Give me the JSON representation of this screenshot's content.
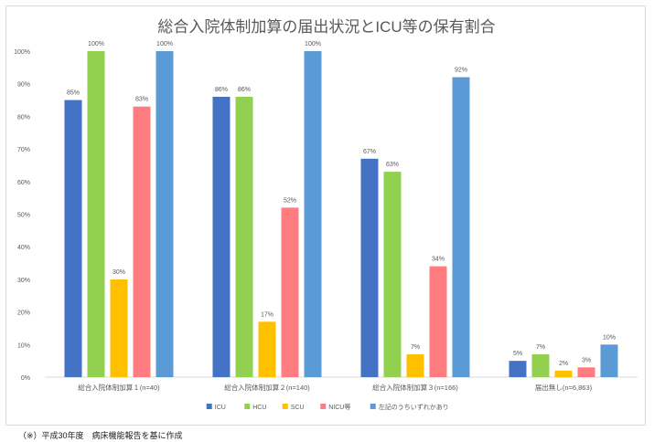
{
  "chart_data": {
    "type": "bar",
    "title": "総合入院体制加算の届出状況とICU等の保有割合",
    "xlabel": "",
    "ylabel": "",
    "ylim": [
      0,
      100
    ],
    "yticks": [
      "0%",
      "10%",
      "20%",
      "30%",
      "40%",
      "50%",
      "60%",
      "70%",
      "80%",
      "90%",
      "100%"
    ],
    "categories": [
      "総合入院体制加算１(n=40)",
      "総合入院体制加算２(n=140)",
      "総合入院体制加算３(n=166)",
      "届出無し(n=6,863)"
    ],
    "series": [
      {
        "name": "ICU",
        "color": "#4472c4",
        "values": [
          85,
          86,
          67,
          5
        ],
        "labels": [
          "85%",
          "86%",
          "67%",
          "5%"
        ]
      },
      {
        "name": "HCU",
        "color": "#92d050",
        "values": [
          100,
          86,
          63,
          7
        ],
        "labels": [
          "100%",
          "86%",
          "63%",
          "7%"
        ]
      },
      {
        "name": "SCU",
        "color": "#ffc000",
        "values": [
          30,
          17,
          7,
          2
        ],
        "labels": [
          "30%",
          "17%",
          "7%",
          "2%"
        ]
      },
      {
        "name": "NICU等",
        "color": "#ff7c80",
        "values": [
          83,
          52,
          34,
          3
        ],
        "labels": [
          "83%",
          "52%",
          "34%",
          "3%"
        ]
      },
      {
        "name": "左記のうちいずれかあり",
        "color": "#5b9bd5",
        "values": [
          100,
          100,
          92,
          10
        ],
        "labels": [
          "100%",
          "100%",
          "92%",
          "10%"
        ]
      }
    ],
    "legend_position": "bottom",
    "grid": false
  },
  "footnote": "（※）平成30年度　病床機能報告を基に作成"
}
